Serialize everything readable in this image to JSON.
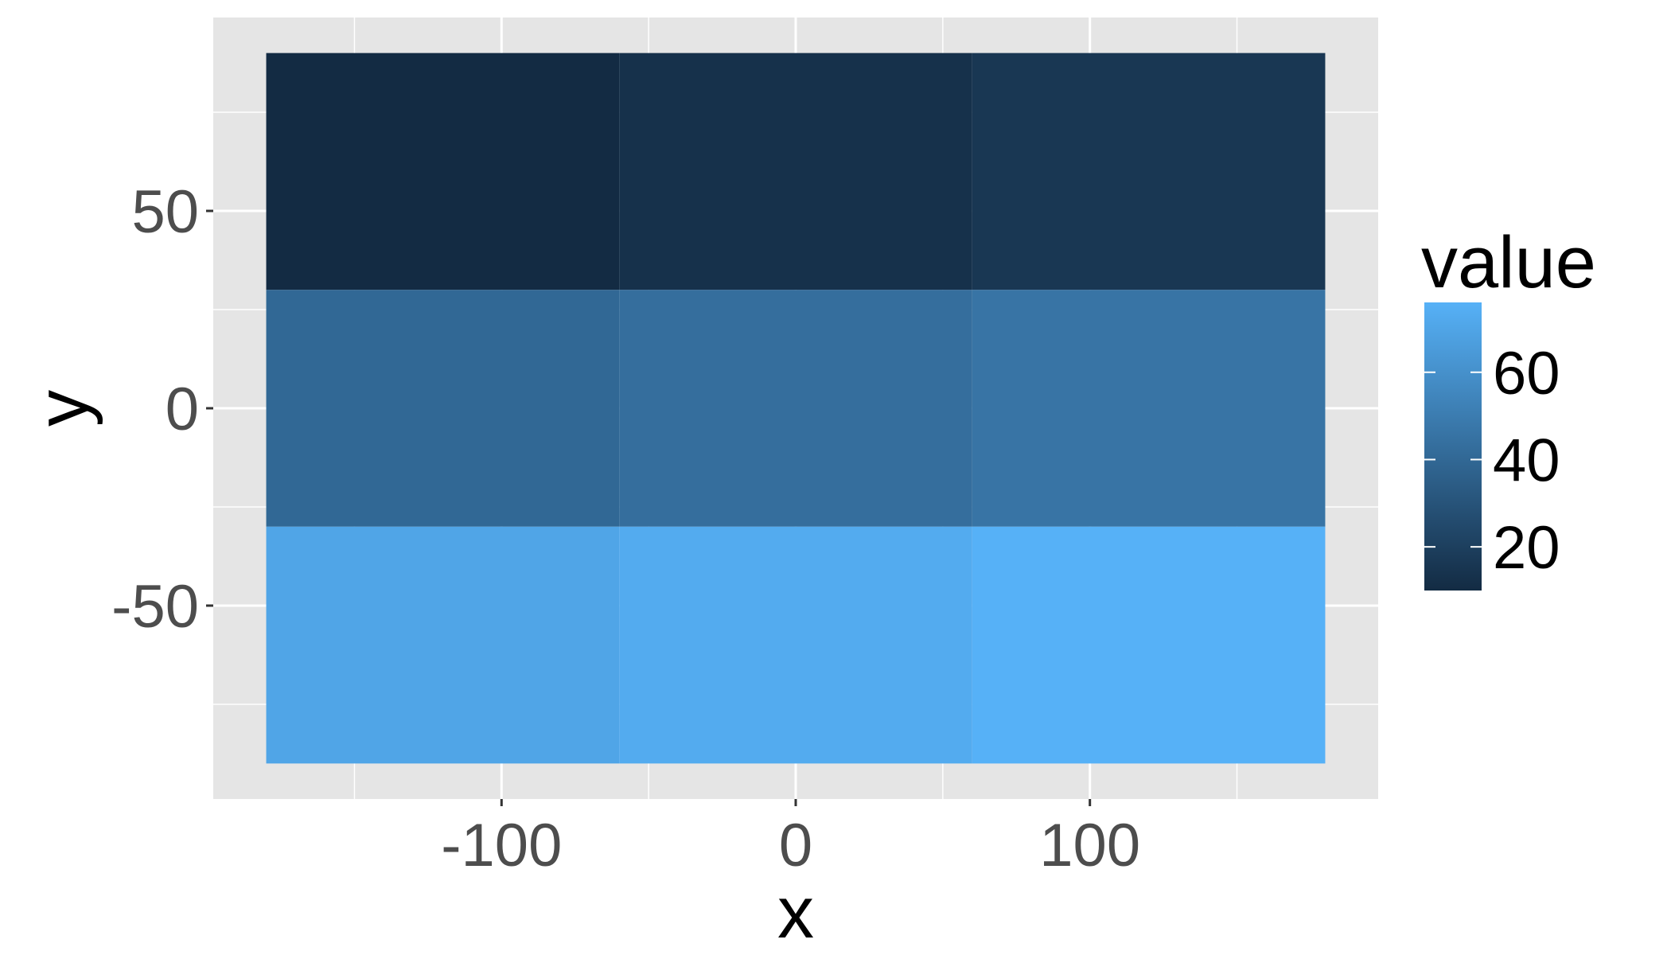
{
  "chart_data": {
    "type": "heatmap",
    "title": "",
    "xlabel": "x",
    "ylabel": "y",
    "x_categories": [
      -120,
      0,
      120
    ],
    "y_categories": [
      -60,
      0,
      60
    ],
    "x_ticks": [
      -100,
      0,
      100
    ],
    "x_tick_labels": [
      "-100",
      "0",
      "100"
    ],
    "y_ticks": [
      -50,
      0,
      50
    ],
    "y_tick_labels": [
      "-50",
      "0",
      "50"
    ],
    "xlim": [
      -198,
      198
    ],
    "ylim": [
      -99,
      99
    ],
    "cells": [
      {
        "x": -120,
        "y": 60,
        "value": 10
      },
      {
        "x": 0,
        "y": 60,
        "value": 13
      },
      {
        "x": 120,
        "y": 60,
        "value": 16
      },
      {
        "x": -120,
        "y": 0,
        "value": 40
      },
      {
        "x": 0,
        "y": 0,
        "value": 43
      },
      {
        "x": 120,
        "y": 0,
        "value": 46
      },
      {
        "x": -120,
        "y": -60,
        "value": 70
      },
      {
        "x": 0,
        "y": -60,
        "value": 73
      },
      {
        "x": 120,
        "y": -60,
        "value": 76
      }
    ],
    "legend": {
      "title": "value",
      "breaks": [
        20,
        40,
        60
      ],
      "break_labels": [
        "20",
        "40",
        "60"
      ],
      "range": [
        10,
        76
      ],
      "low_color": "#132B43",
      "high_color": "#56B1F7",
      "placement": "right"
    },
    "panel_background": "#E5E5E5",
    "grid": true,
    "grid_color": "#FFFFFF"
  }
}
